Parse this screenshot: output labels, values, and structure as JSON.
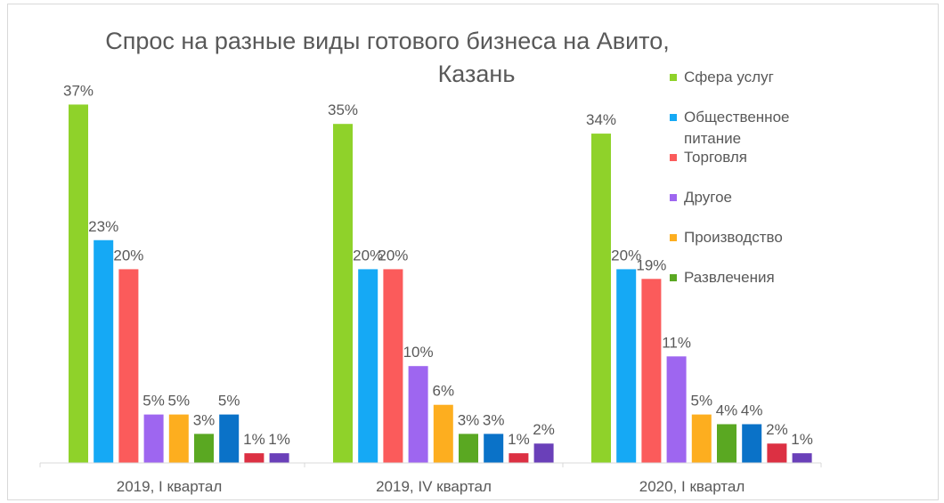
{
  "chart_data": {
    "type": "bar",
    "title": "Спрос на разные виды готового бизнеса на Авито, Казань",
    "title_lines": [
      "Спрос на разные виды готового бизнеса на Авито,",
      "Казань"
    ],
    "categories": [
      "2019, I квартал",
      "2019, IV квартал",
      "2020, I квартал"
    ],
    "series": [
      {
        "name": "Сфера услуг",
        "color": "#8fd22a",
        "values": [
          37,
          35,
          34
        ]
      },
      {
        "name": "Общественное питание",
        "name_lines": [
          "Общественное",
          "питание"
        ],
        "color": "#15a9f5",
        "values": [
          23,
          20,
          20
        ]
      },
      {
        "name": "Торговля",
        "color": "#fb5b5b",
        "values": [
          20,
          20,
          19
        ]
      },
      {
        "name": "Другое",
        "color": "#9e66f0",
        "values": [
          5,
          10,
          11
        ]
      },
      {
        "name": "Производство",
        "color": "#fdae1f",
        "values": [
          5,
          6,
          5
        ]
      },
      {
        "name": "Развлечения",
        "color": "#5aa822",
        "values": [
          3,
          3,
          4
        ]
      },
      {
        "color": "#0a72c8",
        "values": [
          5,
          3,
          4
        ]
      },
      {
        "color": "#dc3043",
        "values": [
          1,
          1,
          2
        ]
      },
      {
        "color": "#6a40b9",
        "values": [
          1,
          2,
          1
        ]
      }
    ],
    "value_suffix": "%",
    "ylim": [
      0,
      40
    ],
    "grid": false,
    "legend": "right"
  }
}
